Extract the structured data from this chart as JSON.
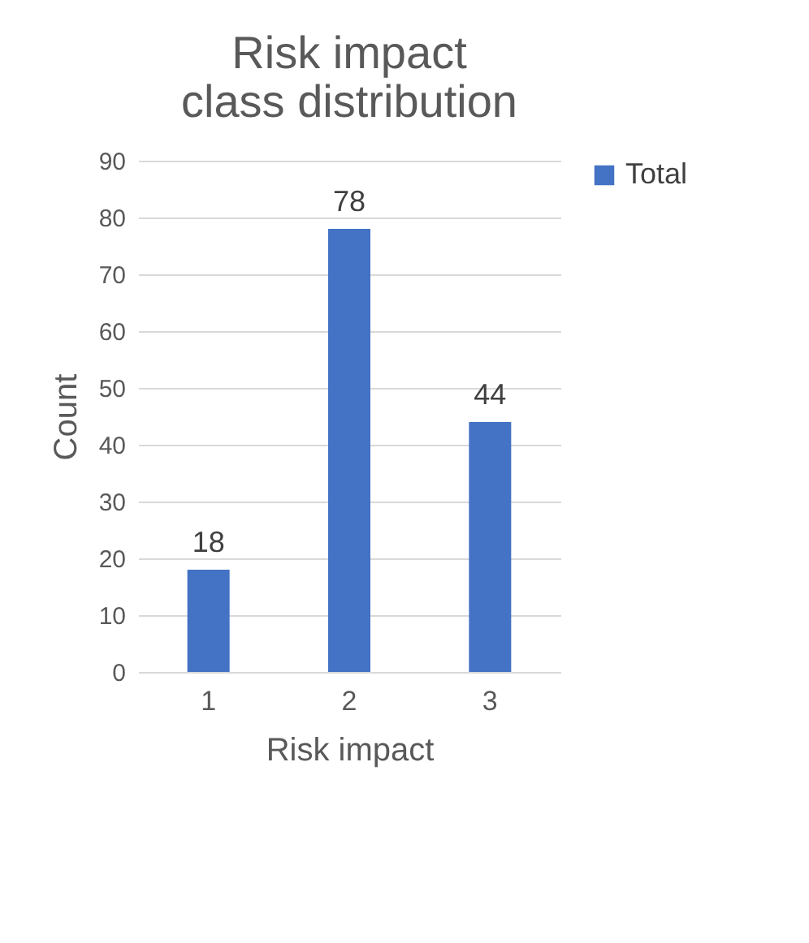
{
  "chart_data": {
    "type": "bar",
    "title": "Risk impact class distribution",
    "xlabel": "Risk impact",
    "ylabel": "Count",
    "categories": [
      "1",
      "2",
      "3"
    ],
    "series": [
      {
        "name": "Total",
        "color": "#4472c4",
        "values": [
          18,
          78,
          44
        ]
      }
    ],
    "ylim": [
      0,
      90
    ],
    "yticks": [
      0,
      10,
      20,
      30,
      40,
      50,
      60,
      70,
      80,
      90
    ],
    "grid": "y",
    "legend": "right",
    "data_labels": true
  }
}
